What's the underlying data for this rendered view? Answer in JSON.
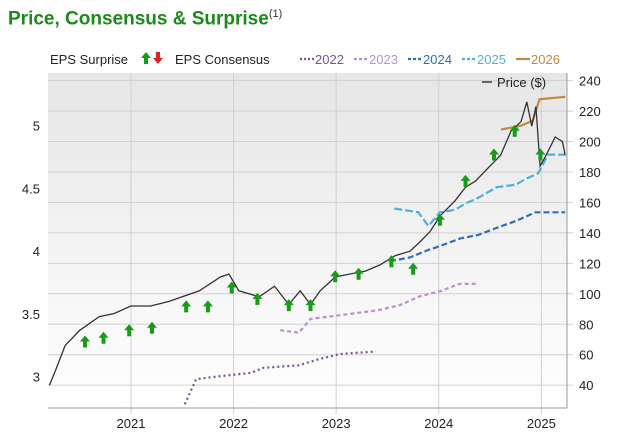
{
  "title": "Price, Consensus & Surprise",
  "title_sup": "(1)",
  "chart_data": {
    "type": "line",
    "legend": {
      "surprise": "EPS Surprise",
      "consensus": "EPS Consensus",
      "price": "Price ($)",
      "placement": "top"
    },
    "left_axis": {
      "range": [
        2.75,
        5.42
      ],
      "ticks": [
        "3",
        "3.5",
        "4",
        "4.5",
        "5"
      ]
    },
    "right_axis": {
      "range": [
        25,
        245
      ],
      "ticks": [
        "40",
        "60",
        "80",
        "100",
        "120",
        "140",
        "160",
        "180",
        "200",
        "220",
        "240"
      ]
    },
    "x_axis": {
      "range": [
        "2020-03-10",
        "2025-04-01"
      ],
      "ticks": [
        "2021",
        "2022",
        "2023",
        "2024",
        "2025"
      ]
    },
    "grid": true,
    "colors": {
      "price": "#333333",
      "2022": "#7a4fa0",
      "2023": "#b990d0",
      "2024": "#2f6fb7",
      "2025": "#4fb0d8",
      "2026": "#c08a40",
      "up": "#1a9a1a",
      "down": "#e02020"
    },
    "price": [
      [
        "2020-03-15",
        40
      ],
      [
        "2020-04-05",
        49
      ],
      [
        "2020-05-10",
        66
      ],
      [
        "2020-07-01",
        76
      ],
      [
        "2020-09-10",
        85
      ],
      [
        "2020-11-01",
        87
      ],
      [
        "2021-01-01",
        92
      ],
      [
        "2021-03-10",
        92
      ],
      [
        "2021-05-15",
        95
      ],
      [
        "2021-09-01",
        102
      ],
      [
        "2021-11-15",
        111
      ],
      [
        "2021-12-15",
        113
      ],
      [
        "2022-01-20",
        102
      ],
      [
        "2022-04-01",
        98
      ],
      [
        "2022-05-25",
        105
      ],
      [
        "2022-07-15",
        93
      ],
      [
        "2022-08-25",
        102
      ],
      [
        "2022-10-01",
        93
      ],
      [
        "2022-11-05",
        102
      ],
      [
        "2022-12-28",
        111
      ],
      [
        "2023-02-20",
        113
      ],
      [
        "2023-04-15",
        115
      ],
      [
        "2023-06-05",
        119
      ],
      [
        "2023-07-28",
        125
      ],
      [
        "2023-09-20",
        128
      ],
      [
        "2023-10-25",
        134
      ],
      [
        "2023-12-01",
        141
      ],
      [
        "2024-01-05",
        151
      ],
      [
        "2024-02-28",
        161
      ],
      [
        "2024-04-05",
        170
      ],
      [
        "2024-05-10",
        174
      ],
      [
        "2024-07-01",
        184
      ],
      [
        "2024-08-08",
        191
      ],
      [
        "2024-09-15",
        207
      ],
      [
        "2024-10-20",
        213
      ],
      [
        "2024-11-10",
        226
      ],
      [
        "2024-11-28",
        210
      ],
      [
        "2024-12-12",
        223
      ],
      [
        "2024-12-27",
        184
      ],
      [
        "2025-01-15",
        190
      ],
      [
        "2025-02-20",
        203
      ],
      [
        "2025-03-15",
        200
      ],
      [
        "2025-03-25",
        191
      ]
    ],
    "consensus": [
      {
        "name": "2022",
        "dash": "2,3",
        "points": [
          [
            "2021-07-10",
            2.78
          ],
          [
            "2021-08-20",
            2.98
          ],
          [
            "2021-11-01",
            3.0
          ],
          [
            "2022-03-01",
            3.03
          ],
          [
            "2022-04-15",
            3.07
          ],
          [
            "2022-08-20",
            3.09
          ],
          [
            "2022-11-01",
            3.14
          ],
          [
            "2023-01-15",
            3.18
          ],
          [
            "2023-05-20",
            3.2
          ]
        ]
      },
      {
        "name": "2023",
        "dash": "4,3",
        "points": [
          [
            "2022-06-15",
            3.37
          ],
          [
            "2022-08-20",
            3.35
          ],
          [
            "2022-10-01",
            3.46
          ],
          [
            "2023-01-15",
            3.49
          ],
          [
            "2023-06-01",
            3.53
          ],
          [
            "2023-08-15",
            3.57
          ],
          [
            "2023-10-25",
            3.64
          ],
          [
            "2024-01-05",
            3.68
          ],
          [
            "2024-03-15",
            3.74
          ],
          [
            "2024-05-20",
            3.74
          ]
        ]
      },
      {
        "name": "2024",
        "dash": "6,3",
        "points": [
          [
            "2023-07-10",
            3.92
          ],
          [
            "2023-09-20",
            3.95
          ],
          [
            "2023-11-25",
            4.01
          ],
          [
            "2024-01-05",
            4.04
          ],
          [
            "2024-03-15",
            4.1
          ],
          [
            "2024-05-20",
            4.13
          ],
          [
            "2024-07-30",
            4.19
          ],
          [
            "2024-10-01",
            4.24
          ],
          [
            "2024-12-10",
            4.31
          ],
          [
            "2025-03-25",
            4.31
          ]
        ]
      },
      {
        "name": "2025",
        "dash": "8,3",
        "points": [
          [
            "2023-07-25",
            4.34
          ],
          [
            "2023-10-20",
            4.31
          ],
          [
            "2023-11-25",
            4.2
          ],
          [
            "2024-01-05",
            4.31
          ],
          [
            "2024-02-28",
            4.33
          ],
          [
            "2024-04-05",
            4.38
          ],
          [
            "2024-05-15",
            4.42
          ],
          [
            "2024-07-25",
            4.51
          ],
          [
            "2024-10-01",
            4.53
          ],
          [
            "2024-11-10",
            4.58
          ],
          [
            "2024-12-20",
            4.62
          ],
          [
            "2025-01-25",
            4.77
          ],
          [
            "2025-03-25",
            4.77
          ]
        ]
      },
      {
        "name": "2026",
        "dash": "none",
        "points": [
          [
            "2024-08-10",
            4.97
          ],
          [
            "2024-10-20",
            5.0
          ],
          [
            "2024-12-01",
            5.04
          ],
          [
            "2024-12-25",
            5.21
          ],
          [
            "2025-03-25",
            5.23
          ]
        ]
      }
    ],
    "surprises": [
      [
        "2020-07-20",
        3.28,
        "up"
      ],
      [
        "2020-09-25",
        3.31,
        "up"
      ],
      [
        "2020-12-25",
        3.37,
        "up"
      ],
      [
        "2021-03-15",
        3.39,
        "up"
      ],
      [
        "2021-07-15",
        3.56,
        "up"
      ],
      [
        "2021-10-01",
        3.56,
        "up"
      ],
      [
        "2021-12-25",
        3.71,
        "up"
      ],
      [
        "2022-03-25",
        3.62,
        "up"
      ],
      [
        "2022-07-15",
        3.57,
        "up"
      ],
      [
        "2022-10-01",
        3.57,
        "up"
      ],
      [
        "2022-12-28",
        3.8,
        "up"
      ],
      [
        "2023-03-20",
        3.82,
        "up"
      ],
      [
        "2023-07-15",
        3.92,
        "up"
      ],
      [
        "2023-10-01",
        3.86,
        "up"
      ],
      [
        "2024-01-05",
        4.25,
        "up"
      ],
      [
        "2024-04-05",
        4.56,
        "up"
      ],
      [
        "2024-07-15",
        4.77,
        "up"
      ],
      [
        "2024-09-28",
        4.96,
        "up"
      ],
      [
        "2024-12-28",
        4.77,
        "up"
      ]
    ]
  }
}
